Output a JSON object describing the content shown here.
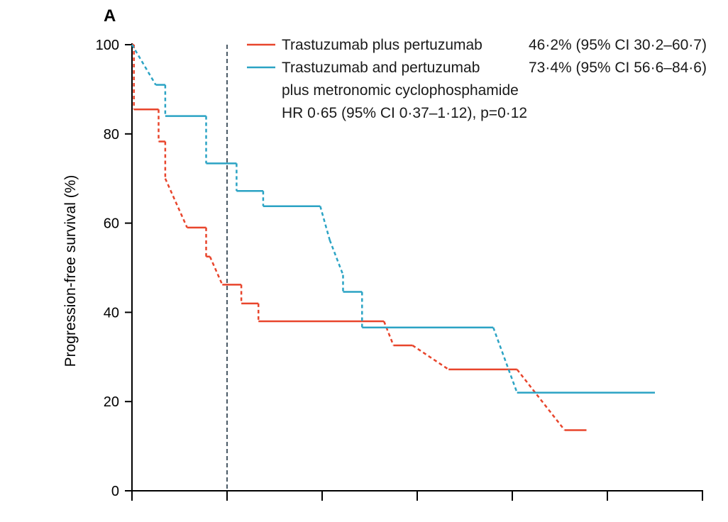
{
  "panel_label": "A",
  "colors": {
    "series_a": "#e8452c",
    "series_b": "#2ba3c4",
    "reference_line": "#4a5a66",
    "axis": "#000000"
  },
  "chart_data": {
    "type": "line",
    "title": "",
    "xlabel": "",
    "ylabel": "Progression-free survival (%)",
    "xlim": [
      0,
      6
    ],
    "ylim": [
      0,
      100
    ],
    "x_ticks": [
      0,
      1,
      2,
      3,
      4,
      5,
      6
    ],
    "y_ticks": [
      0,
      20,
      40,
      60,
      80,
      100
    ],
    "y_tick_labels": [
      "0",
      "20",
      "40",
      "60",
      "80",
      "100"
    ],
    "reference_line_x": 1,
    "grid": false,
    "legend_position": "top-right",
    "series": [
      {
        "name": "Trastuzumab plus pertuzumab",
        "estimate": "46·2% (95% CI 30·2–60·7)",
        "x": [
          0,
          0.02,
          0.02,
          0.28,
          0.28,
          0.35,
          0.35,
          0.58,
          0.78,
          0.78,
          0.82,
          0.95,
          1.15,
          1.15,
          1.33,
          1.33,
          2.65,
          2.75,
          2.95,
          3.33,
          4.05,
          4.55,
          4.55,
          4.78
        ],
        "y": [
          100,
          100,
          85.5,
          85.5,
          78.3,
          78.3,
          70,
          59,
          59,
          52.5,
          52.5,
          46.2,
          46.2,
          42,
          42,
          38,
          38,
          32.6,
          32.6,
          27.2,
          27.2,
          13.6,
          13.6,
          13.6
        ]
      },
      {
        "name": "Trastuzumab and pertuzumab plus metronomic cyclophosphamide",
        "estimate": "73·4% (95% CI 56·6–84·6)",
        "x": [
          0,
          0.25,
          0.35,
          0.35,
          0.78,
          0.78,
          1.1,
          1.1,
          1.38,
          1.38,
          1.98,
          2.08,
          2.22,
          2.22,
          2.42,
          2.42,
          3.8,
          4.05,
          4.05,
          5.5
        ],
        "y": [
          100,
          91,
          91,
          84,
          84,
          73.4,
          73.4,
          67.2,
          67.2,
          63.8,
          63.8,
          56.2,
          48.4,
          44.6,
          44.6,
          36.6,
          36.6,
          22,
          22,
          22
        ]
      }
    ],
    "annotation": "HR 0·65 (95% CI 0·37–1·12), p=0·12"
  },
  "legend": {
    "series_a_label": "Trastuzumab plus pertuzumab",
    "series_a_estimate": "46·2% (95% CI 30·2–60·7)",
    "series_b_label_line1": "Trastuzumab and pertuzumab",
    "series_b_label_line2": "plus metronomic cyclophosphamide",
    "series_b_estimate": "73·4% (95% CI 56·6–84·6)",
    "hr_text": "HR 0·65 (95% CI 0·37–1·12), p=0·12"
  }
}
